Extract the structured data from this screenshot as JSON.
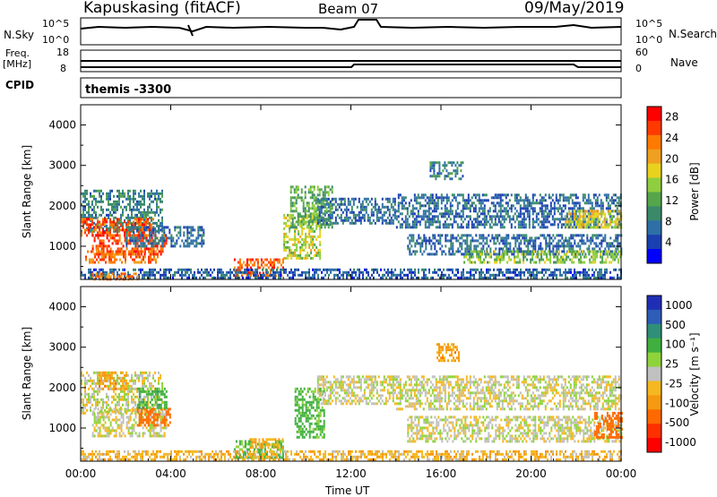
{
  "header": {
    "station": "Kapuskasing (fitACF)",
    "beam": "Beam 07",
    "date": "09/May/2019"
  },
  "status_panels": {
    "nsky_label": "N.Sky",
    "nsky_ticks": [
      "10^5",
      "10^0"
    ],
    "nsearch_label": "N.Search",
    "nsearch_ticks": [
      "10^5",
      "10^0"
    ],
    "freq_label_1": "Freq.",
    "freq_label_2": "[MHz]",
    "freq_ticks": [
      "18",
      "8"
    ],
    "nave_label": "Nave",
    "nave_ticks": [
      "60",
      "0"
    ],
    "cpid_label": "CPID",
    "cpid_value": "themis -3300"
  },
  "colors": {
    "power_scale": [
      "#0000ff",
      "#1a3fb0",
      "#2e6fa8",
      "#3a8a6a",
      "#55a64a",
      "#8fce3e",
      "#e8d21e",
      "#f0a020",
      "#ff7a00",
      "#ff3a00",
      "#ff0000"
    ],
    "velocity_scale": [
      "#1f2fb5",
      "#2e5db8",
      "#2f8f78",
      "#3fb03f",
      "#8fd33a",
      "#c0c0c0",
      "#f5b820",
      "#f59a10",
      "#ff6a00",
      "#ff3000",
      "#ff0000"
    ]
  },
  "chart_data": [
    {
      "type": "heatmap",
      "name": "power",
      "ylabel": "Slant Range [km]",
      "xlabel": "",
      "x_ticks": [
        "00:00",
        "04:00",
        "08:00",
        "12:00",
        "16:00",
        "20:00",
        "00:00"
      ],
      "x_range_hours": [
        0,
        24
      ],
      "y_ticks": [
        1000,
        2000,
        3000,
        4000
      ],
      "ylim": [
        180,
        4500
      ],
      "colorbar": {
        "label": "Power [dB]",
        "ticks": [
          28,
          24,
          20,
          16,
          12,
          8,
          4
        ],
        "range": [
          0,
          30
        ]
      },
      "regions": [
        {
          "t0": 0.0,
          "t1": 3.6,
          "r0": 1400,
          "r1": 2400,
          "value": 8
        },
        {
          "t0": 0.0,
          "t1": 3.2,
          "r0": 1300,
          "r1": 1700,
          "value": 26
        },
        {
          "t0": 0.5,
          "t1": 3.8,
          "r0": 800,
          "r1": 1300,
          "value": 27
        },
        {
          "t0": 0.2,
          "t1": 3.4,
          "r0": 600,
          "r1": 900,
          "value": 24
        },
        {
          "t0": 2.0,
          "t1": 5.5,
          "r0": 1000,
          "r1": 1500,
          "value": 6
        },
        {
          "t0": 6.8,
          "t1": 9.0,
          "r0": 300,
          "r1": 700,
          "value": 26
        },
        {
          "t0": 9.0,
          "t1": 10.6,
          "r0": 700,
          "r1": 1800,
          "value": 16
        },
        {
          "t0": 9.3,
          "t1": 11.2,
          "r0": 1500,
          "r1": 2500,
          "value": 12
        },
        {
          "t0": 10.5,
          "t1": 14.0,
          "r0": 1600,
          "r1": 2200,
          "value": 6
        },
        {
          "t0": 14.0,
          "t1": 24.0,
          "r0": 1500,
          "r1": 2300,
          "value": 6
        },
        {
          "t0": 14.5,
          "t1": 24.0,
          "r0": 800,
          "r1": 1300,
          "value": 6
        },
        {
          "t0": 17.0,
          "t1": 24.0,
          "r0": 600,
          "r1": 900,
          "value": 14
        },
        {
          "t0": 21.5,
          "t1": 24.0,
          "r0": 1500,
          "r1": 1900,
          "value": 18
        },
        {
          "t0": 15.5,
          "t1": 17.0,
          "r0": 2700,
          "r1": 3100,
          "value": 8
        },
        {
          "t0": 0.0,
          "t1": 24.0,
          "r0": 200,
          "r1": 450,
          "value": 5
        },
        {
          "t0": 0.5,
          "t1": 2.5,
          "r0": 200,
          "r1": 350,
          "value": 24
        }
      ]
    },
    {
      "type": "heatmap",
      "name": "velocity",
      "ylabel": "Slant Range [km]",
      "xlabel": "Time UT",
      "x_ticks": [
        "00:00",
        "04:00",
        "08:00",
        "12:00",
        "16:00",
        "20:00",
        "00:00"
      ],
      "x_range_hours": [
        0,
        24
      ],
      "y_ticks": [
        1000,
        2000,
        3000,
        4000
      ],
      "ylim": [
        180,
        4500
      ],
      "colorbar": {
        "label": "Velocity [m s⁻¹]",
        "ticks": [
          1000,
          500,
          100,
          25,
          -25,
          -100,
          -500,
          -1000
        ]
      },
      "regions": [
        {
          "t0": 0.0,
          "t1": 3.6,
          "r0": 1400,
          "r1": 2400,
          "value": 0
        },
        {
          "t0": 0.5,
          "t1": 3.8,
          "r0": 800,
          "r1": 1500,
          "value": 0
        },
        {
          "t0": 2.5,
          "t1": 4.0,
          "r0": 1100,
          "r1": 1500,
          "value": -300
        },
        {
          "t0": 2.5,
          "t1": 3.8,
          "r0": 1500,
          "r1": 2000,
          "value": 100
        },
        {
          "t0": 0.8,
          "t1": 2.0,
          "r0": 2000,
          "r1": 2400,
          "value": -100
        },
        {
          "t0": 6.8,
          "t1": 9.0,
          "r0": 300,
          "r1": 700,
          "value": 90
        },
        {
          "t0": 7.5,
          "t1": 9.0,
          "r0": 500,
          "r1": 750,
          "value": -80
        },
        {
          "t0": 9.5,
          "t1": 10.8,
          "r0": 800,
          "r1": 2000,
          "value": 90
        },
        {
          "t0": 10.5,
          "t1": 14.0,
          "r0": 1600,
          "r1": 2300,
          "value": 0
        },
        {
          "t0": 14.0,
          "t1": 24.0,
          "r0": 1500,
          "r1": 2300,
          "value": 0
        },
        {
          "t0": 14.5,
          "t1": 24.0,
          "r0": 700,
          "r1": 1300,
          "value": 0
        },
        {
          "t0": 22.8,
          "t1": 24.0,
          "r0": 800,
          "r1": 1400,
          "value": -300
        },
        {
          "t0": 15.8,
          "t1": 16.8,
          "r0": 2700,
          "r1": 3100,
          "value": -100
        },
        {
          "t0": 0.0,
          "t1": 24.0,
          "r0": 200,
          "r1": 450,
          "value": -60
        }
      ]
    }
  ]
}
